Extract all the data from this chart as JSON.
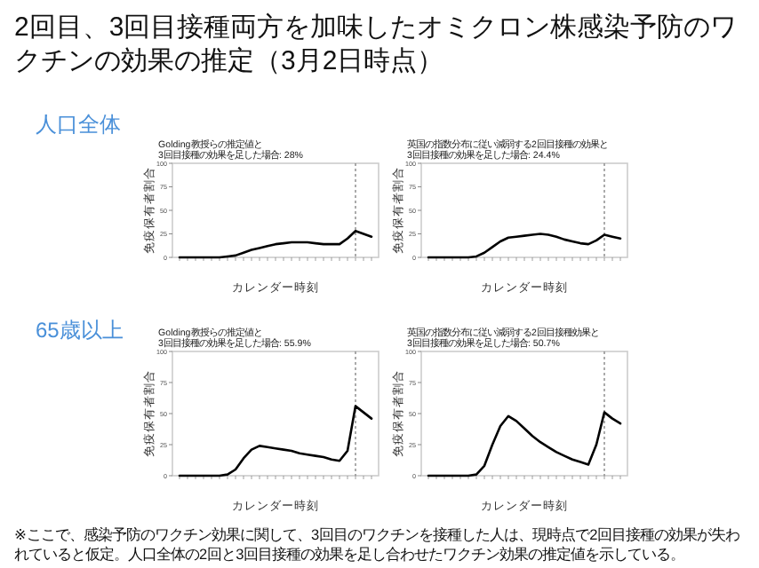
{
  "chart_data": [
    {
      "type": "line",
      "title": "Golding教授らの推定値と\n3回目接種の効果を足した場合: 28%",
      "xlabel": "カレンダー時刻",
      "ylabel": "免疫保有者割合",
      "annotations": [
        "人口全体",
        "2回目、3回目接種両方を加味したオミクロン株感染予防のワクチンの効果の推定（3月2日時点）",
        "※ここで、感染予防のワクチン効果に関して、3回目のワクチンを接種した人は、現時点で2回目接種の効果が失われていると仮定。人口全体の2回と3回目接種の効果を足し合わせたワクチン効果の推定値を示している。"
      ],
      "categories": [
        null,
        null,
        null,
        null,
        null,
        null,
        null,
        null,
        null,
        null,
        null,
        null,
        null,
        null,
        null,
        null,
        null,
        null,
        null,
        null,
        null,
        null,
        null,
        null,
        null
      ],
      "series": [
        {
          "color": "#000000",
          "values": [
            0,
            0,
            0,
            0,
            0,
            0,
            1,
            2,
            5,
            8,
            10,
            12,
            14,
            15,
            16,
            16,
            16,
            15,
            14,
            14,
            14,
            20,
            28,
            25,
            22
          ]
        }
      ],
      "ylim": [
        0,
        100
      ],
      "yticks": [
        0,
        25,
        50,
        75,
        100
      ],
      "grid": false
    },
    {
      "type": "line",
      "title": "英国の指数分布に従い減弱する2回目接種の効果と\n3回目接種の効果を足した場合: 24.4%",
      "xlabel": "カレンダー時刻",
      "ylabel": "免疫保有者割合",
      "categories": [
        null,
        null,
        null,
        null,
        null,
        null,
        null,
        null,
        null,
        null,
        null,
        null,
        null,
        null,
        null,
        null,
        null,
        null,
        null,
        null,
        null,
        null,
        null,
        null,
        null
      ],
      "series": [
        {
          "color": "#000000",
          "values": [
            0,
            0,
            0,
            0,
            0,
            0,
            1,
            5,
            11,
            17,
            21,
            22,
            23,
            24,
            25,
            24,
            22,
            19,
            17,
            15,
            14,
            18,
            24,
            22,
            20
          ]
        }
      ],
      "ylim": [
        0,
        100
      ],
      "yticks": [
        0,
        25,
        50,
        75,
        100
      ],
      "grid": false
    },
    {
      "type": "line",
      "title": "Golding教授らの推定値と\n3回目接種の効果を足した場合: 55.9%",
      "xlabel": "カレンダー時刻",
      "ylabel": "免疫保有者割合",
      "annotations": [
        "65歳以上"
      ],
      "categories": [
        null,
        null,
        null,
        null,
        null,
        null,
        null,
        null,
        null,
        null,
        null,
        null,
        null,
        null,
        null,
        null,
        null,
        null,
        null,
        null,
        null,
        null,
        null,
        null,
        null
      ],
      "series": [
        {
          "color": "#000000",
          "values": [
            0,
            0,
            0,
            0,
            0,
            0,
            1,
            5,
            14,
            21,
            24,
            23,
            22,
            21,
            20,
            18,
            17,
            16,
            15,
            13,
            12,
            20,
            56,
            51,
            46
          ]
        }
      ],
      "ylim": [
        0,
        100
      ],
      "yticks": [
        0,
        25,
        50,
        75,
        100
      ],
      "grid": false
    },
    {
      "type": "line",
      "title": "英国の指数分布に従い減弱する2回目接種効果と\n3回目接種の効果を足した場合: 50.7%",
      "xlabel": "カレンダー時刻",
      "ylabel": "免疫保有者割合",
      "categories": [
        null,
        null,
        null,
        null,
        null,
        null,
        null,
        null,
        null,
        null,
        null,
        null,
        null,
        null,
        null,
        null,
        null,
        null,
        null,
        null,
        null,
        null,
        null,
        null,
        null
      ],
      "series": [
        {
          "color": "#000000",
          "values": [
            0,
            0,
            0,
            0,
            0,
            0,
            1,
            8,
            25,
            40,
            48,
            44,
            38,
            32,
            27,
            23,
            19,
            16,
            13,
            11,
            9,
            25,
            51,
            46,
            42
          ]
        }
      ],
      "ylim": [
        0,
        100
      ],
      "yticks": [
        0,
        25,
        50,
        75,
        100
      ],
      "grid": false
    }
  ]
}
